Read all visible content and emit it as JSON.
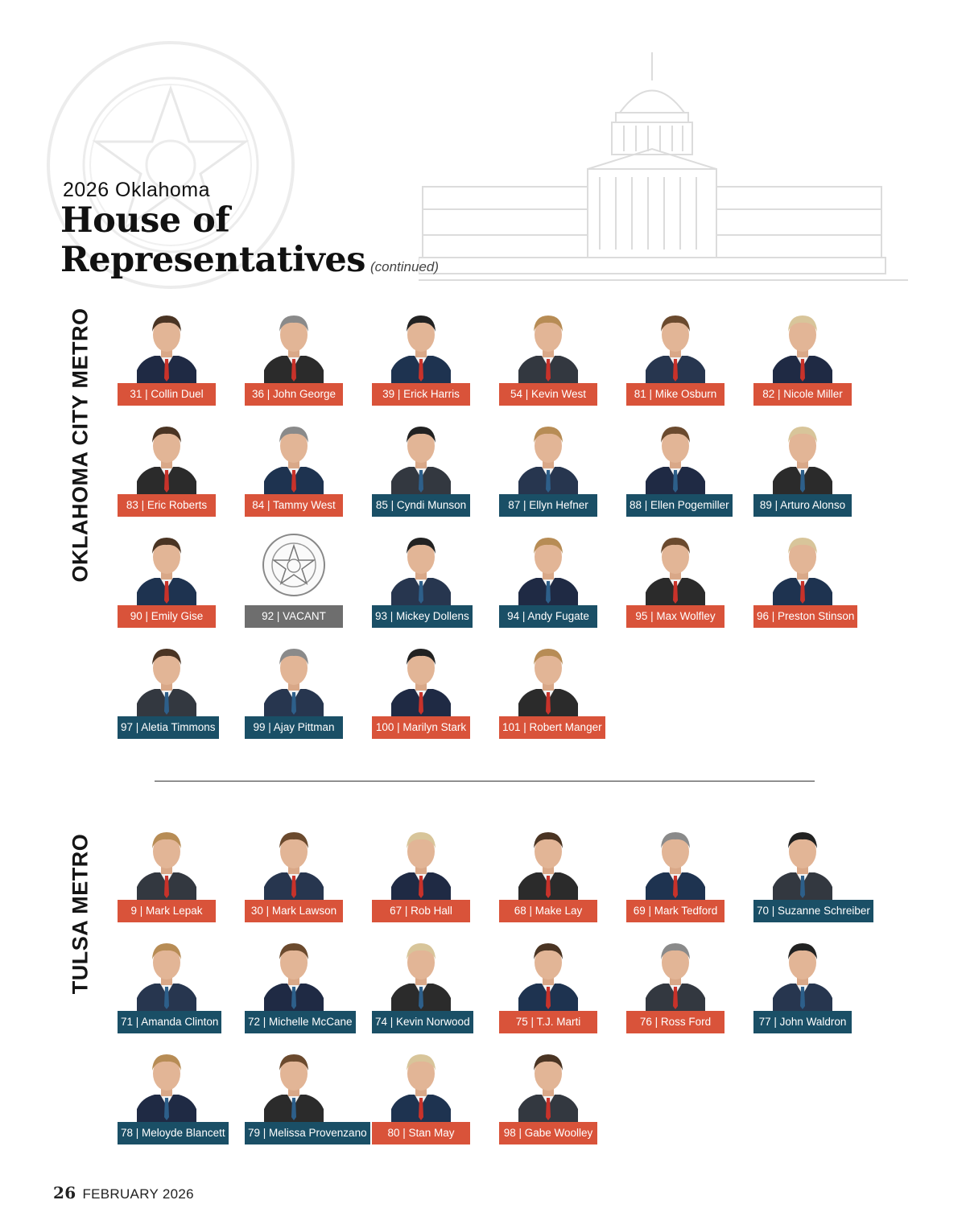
{
  "header": {
    "kicker": "2026 Oklahoma",
    "title_line1": "House of",
    "title_line2": "Representatives",
    "continued": "(continued)"
  },
  "colors": {
    "republican": "#d9533a",
    "democrat": "#1a4f66",
    "vacant": "#6e6e6e"
  },
  "sections": [
    {
      "label": "OKLAHOMA CITY METRO",
      "members": [
        {
          "label": "31 | Collin Duel",
          "party": "R"
        },
        {
          "label": "36 | John George",
          "party": "R"
        },
        {
          "label": "39 | Erick Harris",
          "party": "R"
        },
        {
          "label": "54 | Kevin West",
          "party": "R"
        },
        {
          "label": "81 | Mike Osburn",
          "party": "R"
        },
        {
          "label": "82 | Nicole Miller",
          "party": "R"
        },
        {
          "label": "83 | Eric Roberts",
          "party": "R"
        },
        {
          "label": "84 | Tammy West",
          "party": "R"
        },
        {
          "label": "85 | Cyndi Munson",
          "party": "D"
        },
        {
          "label": "87 | Ellyn Hefner",
          "party": "D"
        },
        {
          "label": "88 | Ellen Pogemiller",
          "party": "D"
        },
        {
          "label": "89 | Arturo Alonso",
          "party": "D"
        },
        {
          "label": "90 | Emily Gise",
          "party": "R"
        },
        {
          "label": "92 | VACANT",
          "party": "V"
        },
        {
          "label": "93 | Mickey Dollens",
          "party": "D"
        },
        {
          "label": "94 | Andy Fugate",
          "party": "D"
        },
        {
          "label": "95 | Max Wolfley",
          "party": "R"
        },
        {
          "label": "96 | Preston Stinson",
          "party": "R"
        },
        {
          "label": "97 | Aletia Timmons",
          "party": "D"
        },
        {
          "label": "99 | Ajay Pittman",
          "party": "D"
        },
        {
          "label": "100 | Marilyn Stark",
          "party": "R"
        },
        {
          "label": "101 | Robert Manger",
          "party": "R"
        }
      ]
    },
    {
      "label": "TULSA METRO",
      "members": [
        {
          "label": "9 | Mark Lepak",
          "party": "R"
        },
        {
          "label": "30 | Mark Lawson",
          "party": "R"
        },
        {
          "label": "67 | Rob Hall",
          "party": "R"
        },
        {
          "label": "68 | Make Lay",
          "party": "R"
        },
        {
          "label": "69 | Mark Tedford",
          "party": "R"
        },
        {
          "label": "70 | Suzanne Schreiber",
          "party": "D"
        },
        {
          "label": "71 | Amanda Clinton",
          "party": "D"
        },
        {
          "label": "72 | Michelle McCane",
          "party": "D"
        },
        {
          "label": "74 | Kevin Norwood",
          "party": "D"
        },
        {
          "label": "75 | T.J. Marti",
          "party": "R"
        },
        {
          "label": "76 | Ross Ford",
          "party": "R"
        },
        {
          "label": "77 | John Waldron",
          "party": "D"
        },
        {
          "label": "78 | Meloyde Blancett",
          "party": "D"
        },
        {
          "label": "79 | Melissa Provenzano",
          "party": "D"
        },
        {
          "label": "80 | Stan May",
          "party": "R"
        },
        {
          "label": "98 | Gabe Woolley",
          "party": "R"
        }
      ]
    }
  ],
  "footer": {
    "page": "26",
    "issue": "FEBRUARY 2026"
  }
}
